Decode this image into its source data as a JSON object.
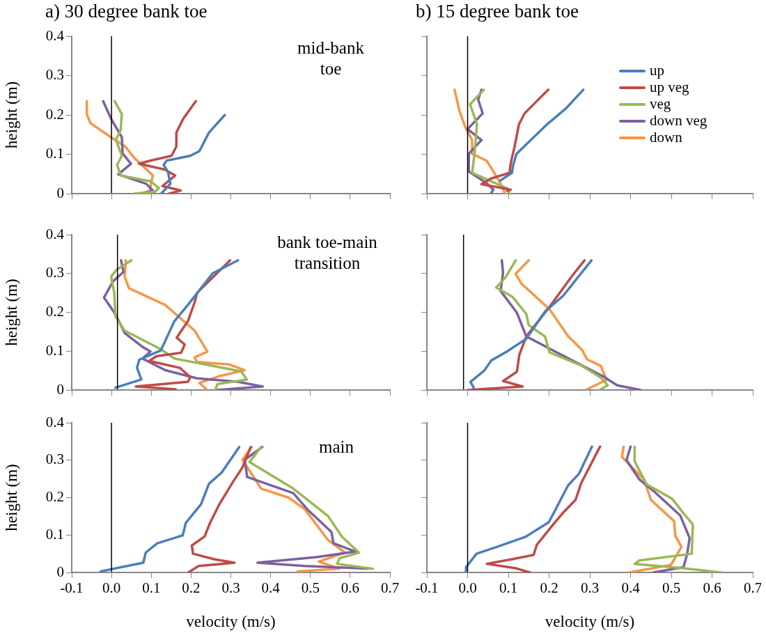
{
  "chart_data": [
    {
      "type": "line",
      "title": "a) 30 degree bank toe",
      "ylabel": "height (m)",
      "annotations": [
        "mid-bank toe"
      ],
      "xlim": [
        -0.1,
        0.7
      ],
      "ylim": [
        0,
        0.4
      ],
      "xticks": [
        -0.1,
        0,
        0.1,
        0.2,
        0.3,
        0.4,
        0.5,
        0.6,
        0.7
      ],
      "yticks": [
        0,
        0.1,
        0.2,
        0.3,
        0.4
      ],
      "tick_labels": "y",
      "legend": false,
      "grid": false,
      "ref_lines": [
        {
          "axis": "x",
          "value": 0,
          "color": "#000000"
        }
      ],
      "series": [
        {
          "color": "#4a7ebb",
          "x": [
            0.125,
            0.148,
            0.142,
            0.131,
            0.139,
            0.198,
            0.221,
            0.245,
            0.285
          ],
          "values": [
            0,
            0.025,
            0.055,
            0.073,
            0.084,
            0.096,
            0.108,
            0.155,
            0.2
          ]
        },
        {
          "color": "#be4b48",
          "x": [
            0.145,
            0.174,
            0.128,
            0.16,
            0.134,
            0.069,
            0.099,
            0.151,
            0.163,
            0.163,
            0.18,
            0.212
          ],
          "values": [
            0,
            0.008,
            0.019,
            0.046,
            0.061,
            0.076,
            0.084,
            0.096,
            0.12,
            0.155,
            0.19,
            0.235
          ]
        },
        {
          "color": "#98b954",
          "x": [
            0.058,
            0.11,
            0.119,
            0.099,
            0.023,
            0.014,
            0.026,
            0.011,
            0.023,
            0.026,
            0.008
          ],
          "values": [
            0,
            0.005,
            0.014,
            0.031,
            0.046,
            0.073,
            0.096,
            0.137,
            0.161,
            0.202,
            0.235
          ]
        },
        {
          "color": "#7d60a0",
          "x": [
            0.072,
            0.104,
            0.087,
            0.017,
            0.049,
            0.028,
            0.026,
            -0.001,
            -0.021
          ],
          "values": [
            0,
            0.008,
            0.025,
            0.049,
            0.076,
            0.102,
            0.143,
            0.19,
            0.235
          ]
        },
        {
          "color": "#f79646",
          "x": [
            0.096,
            0.099,
            0.104,
            0.058,
            0.034,
            -0.001,
            -0.053,
            -0.062,
            -0.062
          ],
          "values": [
            0,
            0.025,
            0.046,
            0.09,
            0.12,
            0.143,
            0.179,
            0.202,
            0.235
          ]
        }
      ]
    },
    {
      "type": "line",
      "title": "b) 15 degree bank toe",
      "xlim": [
        -0.1,
        0.7
      ],
      "ylim": [
        0,
        0.4
      ],
      "xticks": [
        -0.1,
        0,
        0.1,
        0.2,
        0.3,
        0.4,
        0.5,
        0.6,
        0.7
      ],
      "yticks": [
        0,
        0.1,
        0.2,
        0.3,
        0.4
      ],
      "tick_labels": false,
      "legend": "top right",
      "grid": false,
      "ref_lines": [
        {
          "axis": "x",
          "value": 0,
          "color": "#000000"
        }
      ],
      "series": [
        {
          "name": "up",
          "color": "#4a7ebb",
          "x": [
            0.08,
            0.109,
            0.112,
            0.12,
            0.149,
            0.195,
            0.241,
            0.284
          ],
          "values": [
            0.033,
            0.053,
            0.073,
            0.101,
            0.13,
            0.176,
            0.216,
            0.264
          ]
        },
        {
          "name": "up veg",
          "color": "#be4b48",
          "x": [
            0.097,
            0.106,
            0.034,
            0.057,
            0.103,
            0.106,
            0.115,
            0.126,
            0.14,
            0.198
          ],
          "values": [
            0.007,
            0.01,
            0.024,
            0.038,
            0.053,
            0.078,
            0.118,
            0.176,
            0.204,
            0.264
          ]
        },
        {
          "name": "veg",
          "color": "#98b954",
          "x": [
            0.103,
            0.097,
            0.011,
            0.017,
            0.023,
            0.006,
            0.04
          ],
          "values": [
            0.001,
            0.013,
            0.053,
            0.101,
            0.176,
            0.227,
            0.264
          ]
        },
        {
          "name": "down veg",
          "color": "#7d60a0",
          "x": [
            0.057,
            0.063,
            0.046,
            0.003,
            0.003,
            0.034,
            0,
            0.037,
            0.026,
            0.034
          ],
          "values": [
            0,
            0.01,
            0.027,
            0.056,
            0.101,
            0.136,
            0.164,
            0.204,
            0.239,
            0.264
          ]
        },
        {
          "name": "down",
          "color": "#f79646",
          "x": [
            0.092,
            0.08,
            0.057,
            0.046,
            0.011,
            0.011,
            -0.006,
            -0.02,
            -0.032
          ],
          "values": [
            0,
            0.027,
            0.067,
            0.084,
            0.101,
            0.136,
            0.17,
            0.21,
            0.264
          ]
        }
      ]
    },
    {
      "type": "line",
      "ylabel": "height (m)",
      "annotations": [
        "bank toe-main transition"
      ],
      "xlim": [
        -0.1,
        0.7
      ],
      "ylim": [
        0,
        0.4
      ],
      "xticks": [
        -0.1,
        0,
        0.1,
        0.2,
        0.3,
        0.4,
        0.5,
        0.6,
        0.7
      ],
      "yticks": [
        0,
        0.1,
        0.2,
        0.3,
        0.4
      ],
      "tick_labels": "y",
      "legend": false,
      "grid": false,
      "ref_lines": [
        {
          "axis": "x",
          "value": 0.015,
          "color": "#000000"
        }
      ],
      "series": [
        {
          "color": "#4a7ebb",
          "x": [
            0.01,
            0.075,
            0.064,
            0.07,
            0.124,
            0.158,
            0.192,
            0.255,
            0.318
          ],
          "values": [
            0.006,
            0.027,
            0.057,
            0.078,
            0.102,
            0.177,
            0.219,
            0.301,
            0.334
          ]
        },
        {
          "color": "#be4b48",
          "x": [
            0.161,
            0.061,
            0.192,
            0.198,
            0.172,
            0.095,
            0.113,
            0.175,
            0.184,
            0.164,
            0.192,
            0.209,
            0.215,
            0.298
          ],
          "values": [
            0.002,
            0.009,
            0.021,
            0.033,
            0.057,
            0.075,
            0.087,
            0.096,
            0.117,
            0.135,
            0.177,
            0.226,
            0.25,
            0.334
          ]
        },
        {
          "color": "#98b954",
          "x": [
            0.261,
            0.266,
            0.34,
            0.326,
            0.158,
            0.124,
            0.033,
            0.01,
            0.007,
            -0.001,
            0.013,
            0.05
          ],
          "values": [
            0,
            0.015,
            0.027,
            0.048,
            0.081,
            0.105,
            0.153,
            0.189,
            0.25,
            0.292,
            0.31,
            0.334
          ]
        },
        {
          "color": "#7d60a0",
          "x": [
            0.266,
            0.38,
            0.318,
            0.215,
            0.135,
            0.078,
            0.098,
            0.078,
            0.033,
            0.01,
            -0.019,
            0.004,
            0.03,
            0.024
          ],
          "values": [
            0,
            0.009,
            0.021,
            0.03,
            0.051,
            0.081,
            0.099,
            0.111,
            0.147,
            0.195,
            0.238,
            0.28,
            0.304,
            0.334
          ]
        },
        {
          "color": "#f79646",
          "x": [
            0.241,
            0.221,
            0.272,
            0.335,
            0.295,
            0.215,
            0.209,
            0.241,
            0.209,
            0.135,
            0.044,
            0.033,
            0.036
          ],
          "values": [
            0,
            0.018,
            0.036,
            0.051,
            0.066,
            0.072,
            0.084,
            0.099,
            0.153,
            0.219,
            0.262,
            0.292,
            0.334
          ]
        }
      ]
    },
    {
      "type": "line",
      "xlim": [
        -0.1,
        0.7
      ],
      "ylim": [
        0,
        0.4
      ],
      "xticks": [
        -0.1,
        0,
        0.1,
        0.2,
        0.3,
        0.4,
        0.5,
        0.6,
        0.7
      ],
      "yticks": [
        0,
        0.1,
        0.2,
        0.3,
        0.4
      ],
      "tick_labels": false,
      "legend": false,
      "grid": false,
      "ref_lines": [
        {
          "axis": "x",
          "value": -0.01,
          "color": "#000000"
        }
      ],
      "series": [
        {
          "color": "#4a7ebb",
          "x": [
            0.015,
            0.007,
            0.041,
            0.058,
            0.098,
            0.144,
            0.19,
            0.235,
            0.304
          ],
          "values": [
            0.006,
            0.021,
            0.05,
            0.076,
            0.1,
            0.132,
            0.202,
            0.243,
            0.334
          ]
        },
        {
          "color": "#be4b48",
          "x": [
            0.001,
            0.135,
            0.087,
            0.121,
            0.127,
            0.144,
            0.201,
            0.258,
            0.287
          ],
          "values": [
            0,
            0.009,
            0.023,
            0.047,
            0.091,
            0.138,
            0.214,
            0.296,
            0.334
          ]
        },
        {
          "color": "#98b954",
          "x": [
            0.324,
            0.344,
            0.327,
            0.281,
            0.201,
            0.19,
            0.15,
            0.144,
            0.11,
            0.07,
            0.093,
            0.118
          ],
          "values": [
            0,
            0.012,
            0.032,
            0.062,
            0.097,
            0.138,
            0.167,
            0.196,
            0.24,
            0.264,
            0.29,
            0.334
          ]
        },
        {
          "color": "#7d60a0",
          "x": [
            0.424,
            0.367,
            0.333,
            0.213,
            0.144,
            0.121,
            0.081,
            0.087,
            0.084
          ],
          "values": [
            0,
            0.012,
            0.035,
            0.1,
            0.138,
            0.199,
            0.255,
            0.302,
            0.334
          ]
        },
        {
          "color": "#f79646",
          "x": [
            0.29,
            0.341,
            0.327,
            0.293,
            0.281,
            0.247,
            0.201,
            0.133,
            0.118,
            0.15
          ],
          "values": [
            0,
            0.026,
            0.062,
            0.079,
            0.103,
            0.138,
            0.208,
            0.273,
            0.299,
            0.334
          ]
        }
      ]
    },
    {
      "type": "line",
      "xlabel": "velocity (m/s)",
      "ylabel": "height (m)",
      "annotations": [
        "main"
      ],
      "xlim": [
        -0.1,
        0.7
      ],
      "ylim": [
        0,
        0.4
      ],
      "xticks": [
        -0.1,
        {
          "value": 0,
          "label": "0.0"
        },
        0.1,
        0.2,
        0.3,
        0.4,
        0.5,
        0.6,
        0.7
      ],
      "yticks": [
        0,
        0.1,
        0.2,
        0.3,
        0.4
      ],
      "legend": false,
      "grid": false,
      "ref_lines": [
        {
          "axis": "x",
          "value": 0,
          "color": "#000000"
        }
      ],
      "series": [
        {
          "color": "#4a7ebb",
          "x": [
            -0.027,
            0.08,
            0.086,
            0.115,
            0.179,
            0.187,
            0.225,
            0.245,
            0.277,
            0.321
          ],
          "values": [
            0.003,
            0.026,
            0.053,
            0.078,
            0.099,
            0.133,
            0.182,
            0.237,
            0.267,
            0.335
          ]
        },
        {
          "color": "#be4b48",
          "x": [
            0.193,
            0.219,
            0.309,
            0.26,
            0.205,
            0.202,
            0.234,
            0.248,
            0.271,
            0.306,
            0.329,
            0.35
          ],
          "values": [
            0,
            0.017,
            0.026,
            0.035,
            0.05,
            0.072,
            0.096,
            0.133,
            0.182,
            0.243,
            0.28,
            0.335
          ]
        },
        {
          "color": "#98b954",
          "x": [
            0.657,
            0.567,
            0.573,
            0.622,
            0.579,
            0.544,
            0.457,
            0.347,
            0.376
          ],
          "values": [
            0.01,
            0.023,
            0.038,
            0.053,
            0.096,
            0.151,
            0.224,
            0.295,
            0.335
          ]
        },
        {
          "color": "#7d60a0",
          "x": [
            0.645,
            0.486,
            0.367,
            0.515,
            0.613,
            0.558,
            0.553,
            0.492,
            0.457,
            0.341,
            0.335,
            0.379
          ],
          "values": [
            0.01,
            0.017,
            0.026,
            0.041,
            0.056,
            0.078,
            0.108,
            0.169,
            0.212,
            0.255,
            0.301,
            0.335
          ]
        },
        {
          "color": "#f79646",
          "x": [
            0.468,
            0.573,
            0.521,
            0.587,
            0.544,
            0.486,
            0.445,
            0.376,
            0.361,
            0.329,
            0.352
          ],
          "values": [
            0.003,
            0.01,
            0.029,
            0.053,
            0.087,
            0.169,
            0.2,
            0.224,
            0.249,
            0.301,
            0.335
          ]
        }
      ]
    },
    {
      "type": "line",
      "xlabel": "velocity (m/s)",
      "xlim": [
        -0.1,
        0.7
      ],
      "ylim": [
        0,
        0.4
      ],
      "xticks": [
        -0.1,
        {
          "value": 0,
          "label": "0.0"
        },
        0.1,
        0.2,
        0.3,
        0.4,
        0.5,
        0.6,
        0.7
      ],
      "yticks": [
        0,
        0.1,
        0.2,
        0.3,
        0.4
      ],
      "tick_labels": "x",
      "legend": false,
      "grid": false,
      "ref_lines": [
        {
          "axis": "x",
          "value": 0,
          "color": "#000000"
        }
      ],
      "series": [
        {
          "color": "#4a7ebb",
          "x": [
            -0.004,
            -0.004,
            0.022,
            0.079,
            0.142,
            0.199,
            0.211,
            0.231,
            0.247,
            0.273,
            0.305
          ],
          "values": [
            0,
            0.014,
            0.05,
            0.071,
            0.095,
            0.134,
            0.158,
            0.2,
            0.233,
            0.263,
            0.336
          ]
        },
        {
          "color": "#be4b48",
          "x": [
            0.153,
            0.119,
            0.047,
            0.107,
            0.162,
            0.17,
            0.21,
            0.233,
            0.265,
            0.279,
            0.325
          ],
          "values": [
            0,
            0.011,
            0.023,
            0.035,
            0.047,
            0.074,
            0.128,
            0.158,
            0.194,
            0.239,
            0.336
          ]
        },
        {
          "color": "#98b954",
          "x": [
            0.622,
            0.53,
            0.41,
            0.422,
            0.55,
            0.553,
            0.53,
            0.502,
            0.439,
            0.41,
            0.41
          ],
          "values": [
            0,
            0.011,
            0.023,
            0.032,
            0.05,
            0.128,
            0.158,
            0.197,
            0.236,
            0.297,
            0.336
          ]
        },
        {
          "color": "#7d60a0",
          "x": [
            0.456,
            0.53,
            0.539,
            0.545,
            0.522,
            0.456,
            0.422,
            0.39,
            0.4
          ],
          "values": [
            0,
            0.014,
            0.05,
            0.092,
            0.152,
            0.218,
            0.248,
            0.3,
            0.336
          ]
        },
        {
          "color": "#f79646",
          "x": [
            0.396,
            0.499,
            0.525,
            0.51,
            0.507,
            0.45,
            0.433,
            0.379,
            0.383
          ],
          "values": [
            0,
            0.02,
            0.068,
            0.098,
            0.137,
            0.194,
            0.248,
            0.309,
            0.336
          ]
        }
      ]
    }
  ]
}
